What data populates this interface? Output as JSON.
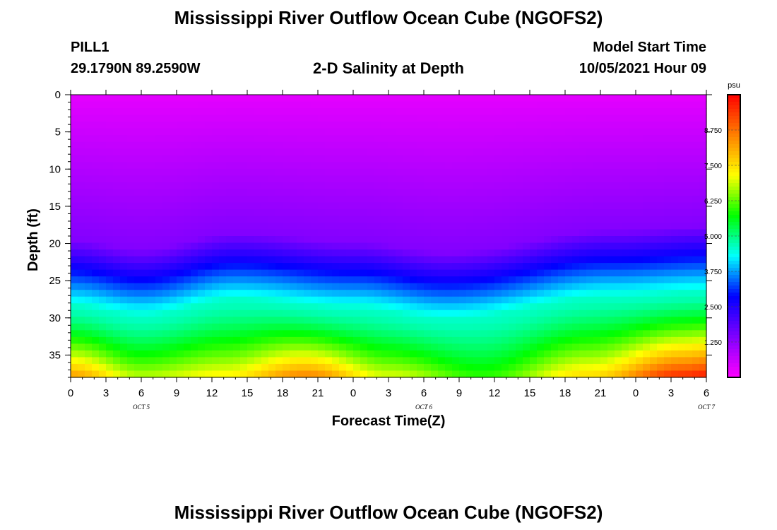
{
  "header": {
    "title": "Mississippi River Outflow Ocean Cube (NGOFS2)",
    "station": "PILL1",
    "coords": "29.1790N  89.2590W",
    "subtitle": "2-D Salinity at Depth",
    "model_label": "Model Start Time",
    "model_time": "10/05/2021 Hour 09"
  },
  "footer": {
    "title": "Mississippi River Outflow Ocean Cube (NGOFS2)"
  },
  "chart_data": {
    "type": "heatmap",
    "title": "2-D Salinity at Depth",
    "xlabel": "Forecast Time(Z)",
    "ylabel": "Depth (ft)",
    "x_range": [
      0,
      54
    ],
    "x_tick_labels": [
      "0",
      "3",
      "6",
      "9",
      "12",
      "15",
      "18",
      "21",
      "0",
      "3",
      "6",
      "9",
      "12",
      "15",
      "18",
      "21",
      "0",
      "3",
      "6"
    ],
    "date_labels": [
      "OCT 5",
      "OCT 6",
      "OCT 7"
    ],
    "y_range": [
      0,
      38
    ],
    "y_ticks": [
      0,
      5,
      10,
      15,
      20,
      25,
      30,
      35
    ],
    "colorbar": {
      "unit": "psu",
      "range": [
        0,
        10
      ],
      "tick_labels": [
        "1.250",
        "2.500",
        "3.750",
        "5.000",
        "6.250",
        "7.500",
        "8.750"
      ],
      "tick_values": [
        1.25,
        2.5,
        3.75,
        5.0,
        6.25,
        7.5,
        8.75
      ],
      "colors": [
        "#ff00ff",
        "#8000ff",
        "#0000ff",
        "#00ffff",
        "#00ff00",
        "#ffff00",
        "#ff8000",
        "#ff0000"
      ]
    },
    "surface_salinity_psu": 0.3,
    "halocline_depth_ft": [
      [
        0,
        24.5
      ],
      [
        6,
        25.8
      ],
      [
        14,
        23.6
      ],
      [
        24,
        24.8
      ],
      [
        32,
        26.2
      ],
      [
        46,
        23.2
      ],
      [
        54,
        22.6
      ]
    ],
    "bottom_salinity_psu": [
      [
        0,
        8.3
      ],
      [
        6,
        6.8
      ],
      [
        13,
        7.3
      ],
      [
        20,
        8.6
      ],
      [
        27,
        7.0
      ],
      [
        35,
        6.0
      ],
      [
        44,
        7.6
      ],
      [
        52,
        9.6
      ],
      [
        54,
        9.8
      ]
    ],
    "grid": false
  }
}
